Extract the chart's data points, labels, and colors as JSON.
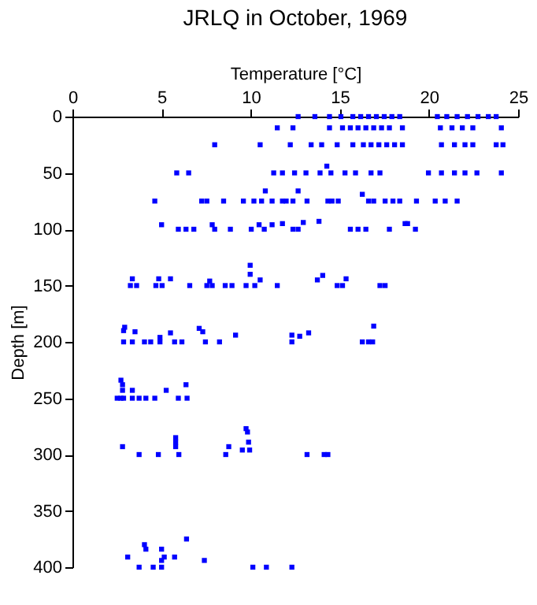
{
  "chart_data": {
    "type": "scatter",
    "title": "JRLQ in October, 1969",
    "xlabel": "Temperature [°C]",
    "ylabel": "Depth [m]",
    "xlim": [
      0,
      25
    ],
    "xticks": [
      0,
      5,
      10,
      15,
      20,
      25
    ],
    "ylim": [
      400,
      0
    ],
    "yticks": [
      0,
      50,
      100,
      150,
      200,
      250,
      300,
      350,
      400
    ],
    "grid": false,
    "legend": false,
    "marker": "square",
    "series": [
      {
        "color": "#0000ff",
        "x": [
          12.66,
          13.6,
          14.42,
          15.06,
          15.73,
          16.17,
          16.61,
          17.05,
          17.49,
          17.92,
          18.36,
          20.47,
          21.0,
          21.58,
          22.16,
          22.75,
          23.33,
          23.77,
          11.49,
          12.37,
          14.42,
          15.15,
          15.59,
          16.02,
          16.46,
          16.9,
          17.34,
          17.78,
          18.51,
          20.64,
          21.29,
          21.87,
          22.46,
          24.06,
          7.98,
          10.53,
          12.22,
          13.39,
          13.98,
          14.85,
          15.73,
          16.32,
          16.75,
          17.19,
          17.63,
          18.07,
          18.51,
          20.7,
          21.43,
          22.02,
          22.46,
          23.77,
          24.15,
          5.85,
          6.52,
          11.29,
          11.78,
          12.46,
          13.1,
          13.89,
          14.5,
          15.29,
          15.88,
          16.75,
          17.25,
          19.97,
          20.7,
          21.43,
          22.02,
          22.69,
          24.06,
          14.27,
          10.82,
          12.66,
          16.26,
          4.62,
          7.25,
          7.54,
          8.48,
          9.59,
          10.18,
          10.61,
          11.2,
          11.78,
          11.99,
          12.37,
          13.16,
          14.33,
          14.56,
          14.91,
          16.61,
          16.9,
          17.54,
          17.98,
          18.36,
          19.3,
          20.35,
          20.91,
          21.58,
          5.94,
          6.37,
          6.81,
          7.98,
          8.86,
          10.03,
          10.76,
          12.37,
          12.66,
          15.59,
          16.02,
          16.46,
          17.78,
          19.24,
          5.0,
          7.84,
          10.47,
          11.2,
          11.78,
          12.95,
          13.83,
          18.66,
          18.8,
          3.25,
          3.6,
          4.68,
          5.03,
          6.58,
          7.54,
          7.84,
          8.57,
          8.95,
          9.74,
          10.23,
          11.49,
          14.85,
          15.15,
          17.25,
          17.54,
          3.36,
          4.84,
          5.5,
          7.7,
          10.53,
          15.35,
          13.74,
          14.04,
          9.97,
          9.97,
          2.87,
          3.36,
          4.04,
          4.39,
          4.91,
          5.73,
          6.14,
          7.46,
          8.25,
          12.31,
          16.26,
          16.61,
          16.84,
          2.87,
          2.93,
          3.51,
          5.5,
          4.91,
          7.11,
          7.31,
          9.15,
          12.31,
          12.75,
          13.25,
          16.9,
          2.51,
          2.72,
          2.87,
          3.36,
          3.74,
          4.12,
          4.62,
          5.94,
          6.43,
          2.72,
          2.81,
          2.81,
          3.36,
          5.26,
          6.37,
          9.74,
          3.74,
          4.82,
          5.97,
          8.6,
          13.16,
          14.12,
          14.33,
          2.81,
          5.79,
          5.79,
          5.79,
          8.77,
          9.53,
          9.82,
          9.88,
          9.94,
          3.74,
          4.53,
          5.0,
          10.12,
          10.88,
          12.31,
          3.1,
          4.04,
          4.12,
          5.0,
          5.0,
          5.15,
          5.73,
          6.4,
          7.4
        ],
        "values": [
          0,
          0,
          0,
          0,
          0,
          0,
          0,
          0,
          0,
          0,
          0,
          0,
          0,
          0,
          0,
          0,
          0,
          0,
          10,
          10,
          10,
          10,
          10,
          10,
          10,
          10,
          10,
          10,
          10,
          10,
          10,
          10,
          10,
          10,
          25,
          25,
          25,
          25,
          25,
          25,
          25,
          25,
          25,
          25,
          25,
          25,
          25,
          25,
          25,
          25,
          25,
          25,
          25,
          50,
          50,
          50,
          50,
          50,
          50,
          50,
          50,
          50,
          50,
          50,
          50,
          50,
          50,
          50,
          50,
          50,
          50,
          44,
          66,
          66,
          69,
          75,
          75,
          75,
          75,
          75,
          75,
          75,
          75,
          75,
          75,
          75,
          75,
          75,
          75,
          75,
          75,
          75,
          75,
          75,
          75,
          75,
          75,
          75,
          75,
          100,
          100,
          100,
          100,
          100,
          100,
          100,
          100,
          100,
          100,
          100,
          100,
          100,
          100,
          96,
          96,
          96,
          96,
          95,
          94,
          93,
          95,
          95,
          150,
          150,
          150,
          150,
          150,
          150,
          150,
          150,
          150,
          150,
          150,
          150,
          150,
          150,
          150,
          150,
          144,
          144,
          144,
          146,
          145,
          144,
          145,
          141,
          140,
          132,
          200,
          200,
          200,
          200,
          200,
          200,
          200,
          200,
          200,
          200,
          200,
          200,
          200,
          190,
          187,
          191,
          192,
          196,
          188,
          191,
          194,
          194,
          195,
          192,
          186,
          250,
          250,
          250,
          250,
          250,
          250,
          250,
          250,
          250,
          234,
          238,
          243,
          243,
          243,
          238,
          277,
          300,
          300,
          300,
          300,
          300,
          300,
          300,
          293,
          285,
          289,
          293,
          293,
          296,
          280,
          289,
          296,
          400,
          400,
          400,
          400,
          400,
          400,
          391,
          380,
          384,
          384,
          394,
          391,
          391,
          375,
          394
        ]
      }
    ]
  }
}
